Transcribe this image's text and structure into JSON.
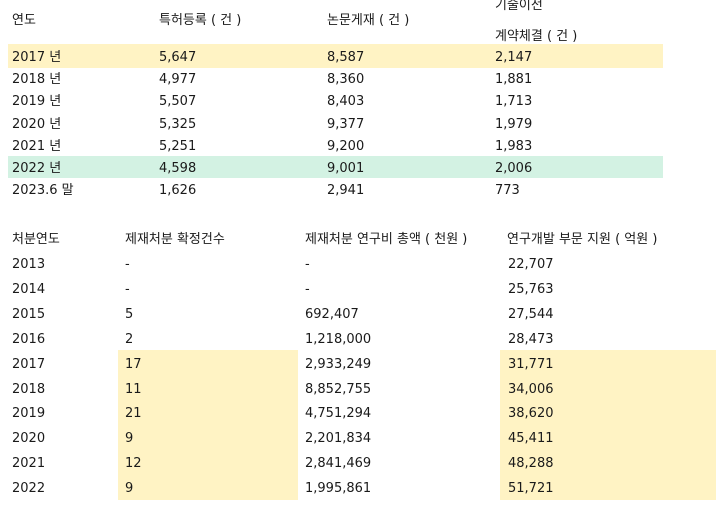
{
  "table1": {
    "headers": {
      "year": "연도",
      "patents": "특허등록 ( 건 )",
      "papers": "논문게재 ( 건 )",
      "tech_line1": "기술이전",
      "tech_line2": "계약체결 ( 건 )"
    },
    "rows": [
      {
        "year": "2017 년",
        "patents": "5,647",
        "papers": "8,587",
        "tech": "2,147"
      },
      {
        "year": "2018 년",
        "patents": "4,977",
        "papers": "8,360",
        "tech": "1,881"
      },
      {
        "year": "2019 년",
        "patents": "5,507",
        "papers": "8,403",
        "tech": "1,713"
      },
      {
        "year": "2020 년",
        "patents": "5,325",
        "papers": "9,377",
        "tech": "1,979"
      },
      {
        "year": "2021 년",
        "patents": "5,251",
        "papers": "9,200",
        "tech": "1,983"
      },
      {
        "year": "2022 년",
        "patents": "4,598",
        "papers": "9,001",
        "tech": "2,006"
      },
      {
        "year": "2023.6 말",
        "patents": "1,626",
        "papers": "2,941",
        "tech": "773"
      }
    ],
    "highlight_colors": {
      "row_2017": "#fff3c4",
      "row_2022": "#d3f2e3"
    }
  },
  "table2": {
    "headers": {
      "year": "처분연도",
      "sanctions": "제재처분 확정건수",
      "rnd_total": "제재처분 연구비 총액 ( 천원 )",
      "support": "연구개발 부문 지원 ( 억원 )"
    },
    "rows": [
      {
        "year": "2013",
        "sanctions": "-",
        "rnd_total": "-",
        "support": "22,707"
      },
      {
        "year": "2014",
        "sanctions": "-",
        "rnd_total": "-",
        "support": "25,763"
      },
      {
        "year": "2015",
        "sanctions": "5",
        "rnd_total": "692,407",
        "support": "27,544"
      },
      {
        "year": "2016",
        "sanctions": "2",
        "rnd_total": "1,218,000",
        "support": "28,473"
      },
      {
        "year": "2017",
        "sanctions": "17",
        "rnd_total": "2,933,249",
        "support": "31,771"
      },
      {
        "year": "2018",
        "sanctions": "11",
        "rnd_total": "8,852,755",
        "support": "34,006"
      },
      {
        "year": "2019",
        "sanctions": "21",
        "rnd_total": "4,751,294",
        "support": "38,620"
      },
      {
        "year": "2020",
        "sanctions": "9",
        "rnd_total": "2,201,834",
        "support": "45,411"
      },
      {
        "year": "2021",
        "sanctions": "12",
        "rnd_total": "2,841,469",
        "support": "48,288"
      },
      {
        "year": "2022",
        "sanctions": "9",
        "rnd_total": "1,995,861",
        "support": "51,721"
      }
    ],
    "highlight_color": "#fff3c4"
  }
}
